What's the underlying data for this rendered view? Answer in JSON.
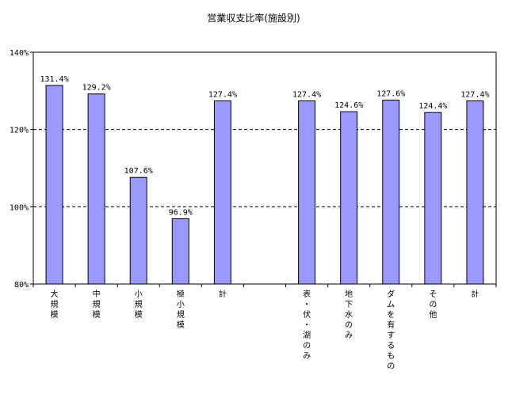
{
  "chart_data": {
    "type": "bar",
    "title": "営業収支比率(施設別)",
    "xlabel": "",
    "ylabel": "",
    "ylim": [
      80,
      140
    ],
    "yticks": [
      80,
      100,
      120,
      140
    ],
    "ytick_labels": [
      "80%",
      "100%",
      "120%",
      "140%"
    ],
    "grid": true,
    "categories": [
      "大規模",
      "中規模",
      "小規模",
      "極小規模",
      "計",
      "",
      "表・伏・湖のみ",
      "地下水のみ",
      "ダムを有するもの",
      "その他",
      "計"
    ],
    "values": [
      131.4,
      129.2,
      107.6,
      96.9,
      127.4,
      null,
      127.4,
      124.6,
      127.6,
      124.4,
      127.4
    ],
    "data_labels": [
      "131.4%",
      "129.2%",
      "107.6%",
      "96.9%",
      "127.4%",
      "",
      "127.4%",
      "124.6%",
      "127.6%",
      "124.4%",
      "127.4%"
    ],
    "bar_color": "#9999ff"
  }
}
